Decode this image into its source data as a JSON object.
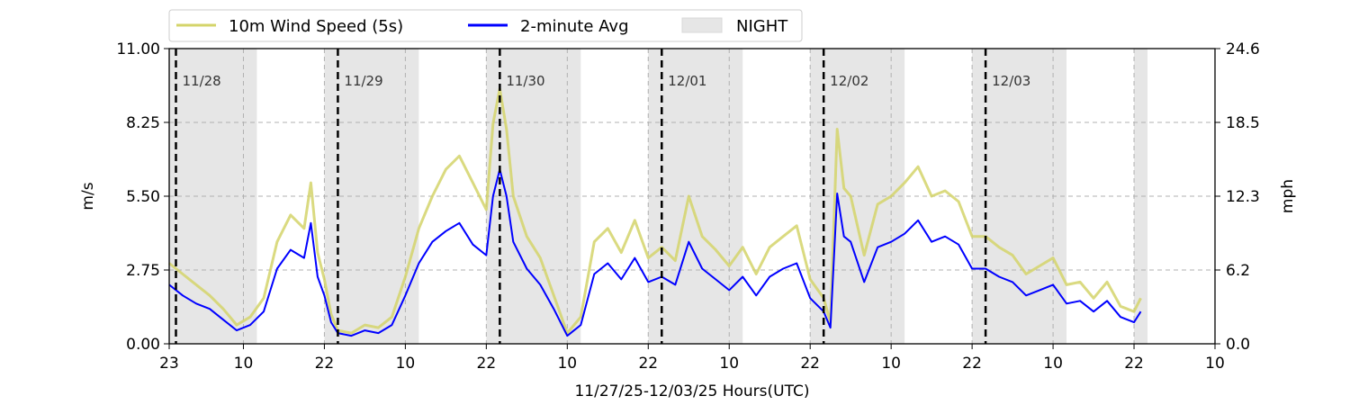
{
  "chart_data": {
    "type": "line",
    "title": "",
    "xlabel": "11/27/25-12/03/25  Hours(UTC)",
    "ylabel_left": "m/s",
    "ylabel_right": "mph",
    "x_unit": "hours since 11/27 00:00 UTC",
    "xlim": [
      23,
      178
    ],
    "ylim": [
      0,
      11
    ],
    "y_ticks": [
      0,
      2.75,
      5.5,
      8.25,
      11
    ],
    "y_tick_labels": [
      "0.00",
      "2.75",
      "5.50",
      "8.25",
      "11.00"
    ],
    "y2_tick_labels": [
      "0.0",
      "6.2",
      "12.3",
      "18.5",
      "24.6"
    ],
    "x_ticks": [
      23,
      34,
      46,
      58,
      70,
      82,
      94,
      106,
      118,
      130,
      142,
      154,
      166,
      178
    ],
    "x_tick_labels": [
      "23",
      "10",
      "22",
      "10",
      "22",
      "10",
      "22",
      "10",
      "22",
      "10",
      "22",
      "10",
      "22",
      "10"
    ],
    "grid": true,
    "legend": [
      {
        "label": "10m Wind Speed (5s)",
        "color": "#d4d46a"
      },
      {
        "label": "2-minute Avg",
        "color": "#0000ff"
      },
      {
        "label": "NIGHT",
        "color": "#e6e6e6"
      }
    ],
    "legend_placement": "top-left, above plot",
    "day_markers": [
      {
        "x": 24,
        "label": "11/28"
      },
      {
        "x": 48,
        "label": "11/29"
      },
      {
        "x": 72,
        "label": "11/30"
      },
      {
        "x": 96,
        "label": "12/01"
      },
      {
        "x": 120,
        "label": "12/02"
      },
      {
        "x": 144,
        "label": "12/03"
      }
    ],
    "night_spans": [
      [
        23,
        36
      ],
      [
        46,
        60
      ],
      [
        70,
        84
      ],
      [
        94,
        108
      ],
      [
        118,
        132
      ],
      [
        142,
        156
      ],
      [
        166,
        168
      ]
    ],
    "series": [
      {
        "name": "2-minute Avg",
        "color": "#0000ff",
        "x": [
          23,
          25,
          27,
          29,
          31,
          33,
          35,
          37,
          39,
          41,
          43,
          44,
          45,
          46,
          47,
          48,
          50,
          52,
          54,
          56,
          58,
          60,
          62,
          64,
          66,
          68,
          70,
          71,
          72,
          73,
          74,
          76,
          78,
          80,
          82,
          84,
          86,
          88,
          90,
          92,
          94,
          96,
          98,
          100,
          102,
          104,
          106,
          108,
          110,
          112,
          114,
          116,
          118,
          120,
          121,
          122,
          123,
          124,
          126,
          128,
          130,
          132,
          134,
          136,
          138,
          140,
          142,
          144,
          146,
          148,
          150,
          152,
          154,
          156,
          158,
          160,
          162,
          164,
          166,
          167
        ],
        "values": [
          2.2,
          1.8,
          1.5,
          1.3,
          0.9,
          0.5,
          0.7,
          1.2,
          2.8,
          3.5,
          3.2,
          4.5,
          2.5,
          1.8,
          0.8,
          0.4,
          0.3,
          0.5,
          0.4,
          0.7,
          1.8,
          3.0,
          3.8,
          4.2,
          4.5,
          3.7,
          3.3,
          5.5,
          6.5,
          5.5,
          3.8,
          2.8,
          2.2,
          1.3,
          0.3,
          0.7,
          2.6,
          3.0,
          2.4,
          3.2,
          2.3,
          2.5,
          2.2,
          3.8,
          2.8,
          2.4,
          2.0,
          2.5,
          1.8,
          2.5,
          2.8,
          3.0,
          1.7,
          1.2,
          0.6,
          5.6,
          4.0,
          3.8,
          2.3,
          3.6,
          3.8,
          4.1,
          4.6,
          3.8,
          4.0,
          3.7,
          2.8,
          2.8,
          2.5,
          2.3,
          1.8,
          2.0,
          2.2,
          1.5,
          1.6,
          1.2,
          1.6,
          1.0,
          0.8,
          1.2
        ]
      },
      {
        "name": "10m Wind Speed (5s)",
        "color": "#d4d46a",
        "x": [
          23,
          25,
          27,
          29,
          31,
          33,
          35,
          37,
          39,
          41,
          43,
          44,
          45,
          46,
          47,
          48,
          50,
          52,
          54,
          56,
          58,
          60,
          62,
          64,
          66,
          68,
          70,
          71,
          72,
          73,
          74,
          76,
          78,
          80,
          82,
          84,
          86,
          88,
          90,
          92,
          94,
          96,
          98,
          100,
          102,
          104,
          106,
          108,
          110,
          112,
          114,
          116,
          118,
          120,
          121,
          122,
          123,
          124,
          126,
          128,
          130,
          132,
          134,
          136,
          138,
          140,
          142,
          144,
          146,
          148,
          150,
          152,
          154,
          156,
          158,
          160,
          162,
          164,
          166,
          167
        ],
        "values": [
          3.0,
          2.6,
          2.2,
          1.8,
          1.3,
          0.7,
          1.0,
          1.7,
          3.8,
          4.8,
          4.3,
          6.0,
          3.4,
          2.4,
          1.1,
          0.5,
          0.4,
          0.7,
          0.6,
          1.0,
          2.5,
          4.3,
          5.5,
          6.5,
          7.0,
          6.0,
          5.0,
          8.2,
          9.5,
          8.0,
          5.5,
          4.0,
          3.2,
          1.8,
          0.4,
          1.0,
          3.8,
          4.3,
          3.4,
          4.6,
          3.2,
          3.6,
          3.1,
          5.5,
          4.0,
          3.5,
          2.9,
          3.6,
          2.6,
          3.6,
          4.0,
          4.4,
          2.4,
          1.7,
          0.8,
          8.0,
          5.8,
          5.5,
          3.3,
          5.2,
          5.5,
          6.0,
          6.6,
          5.5,
          5.7,
          5.3,
          4.0,
          4.0,
          3.6,
          3.3,
          2.6,
          2.9,
          3.2,
          2.2,
          2.3,
          1.7,
          2.3,
          1.4,
          1.2,
          1.7
        ]
      }
    ]
  }
}
